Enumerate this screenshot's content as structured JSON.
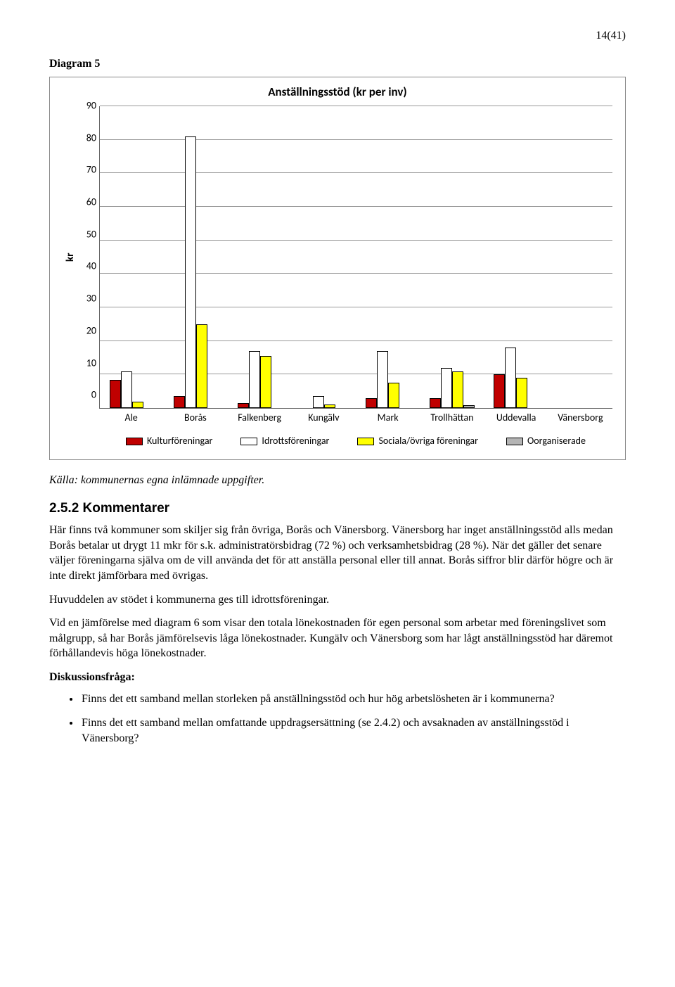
{
  "page_number": "14(41)",
  "diagram_label": "Diagram 5",
  "chart": {
    "type": "bar",
    "title": "Anställningsstöd (kr per inv)",
    "ylabel": "kr",
    "ylim": [
      0,
      90
    ],
    "ytick_step": 10,
    "yticks": [
      "90",
      "80",
      "70",
      "60",
      "50",
      "40",
      "30",
      "20",
      "10",
      "0"
    ],
    "grid_color": "#999999",
    "background_color": "#ffffff",
    "categories": [
      "Ale",
      "Borås",
      "Falkenberg",
      "Kungälv",
      "Mark",
      "Trollhättan",
      "Uddevalla",
      "Vänersborg"
    ],
    "series": [
      {
        "name": "Kulturföreningar",
        "color": "#c00000",
        "values": [
          8.5,
          3.5,
          1.5,
          0,
          3,
          3,
          10,
          0
        ]
      },
      {
        "name": "Idrottsföreningar",
        "color": "#ffffff",
        "values": [
          11,
          81,
          17,
          3.5,
          17,
          12,
          18,
          0
        ]
      },
      {
        "name": "Sociala/övriga föreningar",
        "color": "#ffff00",
        "values": [
          2,
          25,
          15.5,
          1,
          7.5,
          11,
          9,
          0
        ]
      },
      {
        "name": "Oorganiserade",
        "color": "#b4b4b4",
        "values": [
          0,
          0,
          0,
          0,
          0,
          0.8,
          0,
          0
        ]
      }
    ]
  },
  "source": "Källa: kommunernas egna inlämnade uppgifter.",
  "section_heading": "2.5.2 Kommentarer",
  "para1": "Här finns två kommuner som skiljer sig från övriga, Borås och Vänersborg. Vänersborg har inget anställningsstöd alls medan Borås betalar ut drygt 11 mkr för s.k. administratörsbidrag (72 %) och verksamhetsbidrag (28 %). När det gäller det senare väljer föreningarna själva om de vill använda det för att anställa personal eller till annat. Borås siffror blir därför högre och är inte direkt jämförbara med övrigas.",
  "para2": "Huvuddelen av stödet i kommunerna ges till idrottsföreningar.",
  "para3": "Vid en jämförelse med diagram 6 som visar den totala lönekostnaden för egen personal som arbetar med föreningslivet som målgrupp, så har Borås jämförelsevis låga lönekostnader. Kungälv och Vänersborg som har lågt anställningsstöd har däremot förhållandevis höga lönekostnader.",
  "discussion_label": "Diskussionsfråga:",
  "bullet1": "Finns det ett samband mellan storleken på anställningsstöd och hur hög arbetslösheten är i kommunerna?",
  "bullet2": "Finns det ett samband mellan omfattande uppdragsersättning (se 2.4.2) och avsaknaden av anställningsstöd i Vänersborg?"
}
